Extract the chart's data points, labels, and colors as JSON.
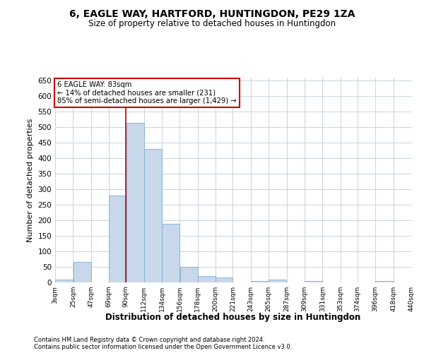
{
  "title": "6, EAGLE WAY, HARTFORD, HUNTINGDON, PE29 1ZA",
  "subtitle": "Size of property relative to detached houses in Huntingdon",
  "xlabel": "Distribution of detached houses by size in Huntingdon",
  "ylabel": "Number of detached properties",
  "footer1": "Contains HM Land Registry data © Crown copyright and database right 2024.",
  "footer2": "Contains public sector information licensed under the Open Government Licence v3.0.",
  "annotation_line1": "6 EAGLE WAY: 83sqm",
  "annotation_line2": "← 14% of detached houses are smaller (231)",
  "annotation_line3": "85% of semi-detached houses are larger (1,429) →",
  "property_size": 83,
  "bar_left_edges": [
    3,
    25,
    47,
    69,
    90,
    112,
    134,
    156,
    178,
    200,
    221,
    243,
    265,
    287,
    309,
    331,
    353,
    374,
    396,
    418
  ],
  "bar_widths": [
    22,
    22,
    22,
    21,
    22,
    22,
    22,
    22,
    22,
    21,
    22,
    22,
    22,
    22,
    22,
    22,
    21,
    22,
    22,
    22
  ],
  "bar_heights": [
    10,
    65,
    0,
    280,
    515,
    430,
    190,
    50,
    20,
    15,
    0,
    5,
    10,
    0,
    5,
    0,
    0,
    0,
    5,
    0
  ],
  "bar_color": "#c8d8ea",
  "bar_edge_color": "#7bafd4",
  "vline_color": "#cc0000",
  "vline_x": 90,
  "annotation_box_color": "#cc0000",
  "background_color": "#ffffff",
  "grid_color": "#c8d4e0",
  "ylim": [
    0,
    660
  ],
  "yticks": [
    0,
    50,
    100,
    150,
    200,
    250,
    300,
    350,
    400,
    450,
    500,
    550,
    600,
    650
  ],
  "xlim": [
    3,
    440
  ],
  "tick_labels": [
    "3sqm",
    "25sqm",
    "47sqm",
    "69sqm",
    "90sqm",
    "112sqm",
    "134sqm",
    "156sqm",
    "178sqm",
    "200sqm",
    "221sqm",
    "243sqm",
    "265sqm",
    "287sqm",
    "309sqm",
    "331sqm",
    "353sqm",
    "374sqm",
    "396sqm",
    "418sqm",
    "440sqm"
  ]
}
